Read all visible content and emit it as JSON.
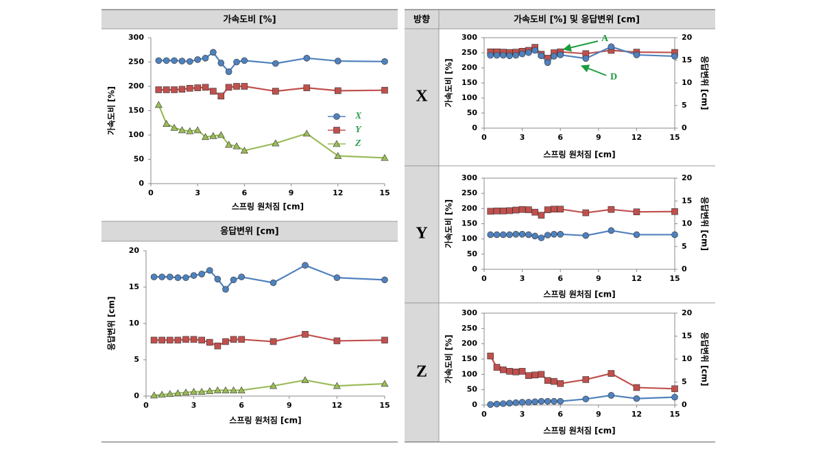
{
  "table": {
    "left_headers": [
      "가속도비 [%]",
      "응답변위 [cm]"
    ],
    "right_header": [
      "방향",
      "가속도비 [%] 및 응답변위 [cm]"
    ],
    "row_labels": [
      "X",
      "Y",
      "Z"
    ]
  },
  "chart_data": [
    {
      "type": "line",
      "xlabel": "스프링 원처짐 [cm]",
      "ylabel": "가속도비 [%]",
      "x": [
        0.5,
        1,
        1.5,
        2,
        2.5,
        3,
        3.5,
        4,
        4.5,
        5,
        5.5,
        6,
        8,
        10,
        12,
        15
      ],
      "xlim": [
        0,
        15
      ],
      "xticks": [
        0,
        3,
        6,
        9,
        12,
        15
      ],
      "ylim": [
        0,
        300
      ],
      "yticks": [
        0,
        50,
        100,
        150,
        200,
        250,
        300
      ],
      "grid": false,
      "legend": "center right",
      "series": [
        {
          "name": "X",
          "color": "#4f81bd",
          "marker": "circle",
          "values": [
            253,
            253,
            253,
            252,
            251,
            255,
            258,
            270,
            248,
            230,
            250,
            253,
            247,
            258,
            252,
            251
          ]
        },
        {
          "name": "Y",
          "color": "#c0504d",
          "marker": "square",
          "values": [
            193,
            193,
            193,
            194,
            196,
            197,
            198,
            190,
            180,
            198,
            200,
            200,
            190,
            197,
            191,
            192
          ]
        },
        {
          "name": "Z",
          "color": "#9bbb59",
          "marker": "triangle",
          "values": [
            162,
            123,
            115,
            110,
            108,
            110,
            96,
            98,
            100,
            80,
            77,
            68,
            83,
            103,
            57,
            53
          ]
        }
      ]
    },
    {
      "type": "line",
      "xlabel": "스프링 원처짐 [cm]",
      "ylabel": "응답변위 [cm]",
      "x": [
        0.5,
        1,
        1.5,
        2,
        2.5,
        3,
        3.5,
        4,
        4.5,
        5,
        5.5,
        6,
        8,
        10,
        12,
        15
      ],
      "xlim": [
        0,
        15
      ],
      "xticks": [
        0,
        3,
        6,
        9,
        12,
        15
      ],
      "ylim": [
        0,
        20
      ],
      "yticks": [
        0,
        5,
        10,
        15,
        20
      ],
      "grid": false,
      "series": [
        {
          "color": "#4f81bd",
          "marker": "circle",
          "values": [
            16.4,
            16.4,
            16.4,
            16.3,
            16.3,
            16.6,
            16.8,
            17.3,
            16.1,
            14.7,
            16.0,
            16.4,
            15.6,
            18.0,
            16.3,
            16.0
          ]
        },
        {
          "color": "#c0504d",
          "marker": "square",
          "values": [
            7.7,
            7.7,
            7.7,
            7.7,
            7.8,
            7.8,
            7.7,
            7.4,
            6.9,
            7.5,
            7.8,
            7.8,
            7.5,
            8.5,
            7.6,
            7.7
          ]
        },
        {
          "color": "#9bbb59",
          "marker": "triangle",
          "values": [
            0.1,
            0.2,
            0.3,
            0.4,
            0.5,
            0.6,
            0.6,
            0.7,
            0.8,
            0.8,
            0.8,
            0.8,
            1.4,
            2.2,
            1.4,
            1.7
          ]
        }
      ]
    },
    {
      "type": "line",
      "xlabel": "스프링 원처짐 [cm]",
      "ylabel": "가속도비 [%]",
      "y2label": "응답변위 [cm]",
      "x": [
        0.5,
        1,
        1.5,
        2,
        2.5,
        3,
        3.5,
        4,
        4.5,
        5,
        5.5,
        6,
        8,
        10,
        12,
        15
      ],
      "xlim": [
        0,
        15
      ],
      "xticks": [
        0,
        3,
        6,
        9,
        12,
        15
      ],
      "ylim": [
        0,
        300
      ],
      "yticks": [
        0,
        50,
        100,
        150,
        200,
        250,
        300
      ],
      "y2lim": [
        0,
        20
      ],
      "y2ticks": [
        0,
        5,
        10,
        15,
        20
      ],
      "grid": false,
      "annotations": [
        {
          "text": "A"
        },
        {
          "text": "D"
        }
      ],
      "series": [
        {
          "color": "#c0504d",
          "marker": "square",
          "values": [
            253,
            253,
            252,
            251,
            252,
            255,
            258,
            268,
            245,
            232,
            250,
            253,
            247,
            258,
            252,
            251
          ]
        },
        {
          "color": "#4f81bd",
          "marker": "circle",
          "axis": "y2",
          "values": [
            16.1,
            16.1,
            16.1,
            16.0,
            16.1,
            16.4,
            16.7,
            17.2,
            16.0,
            14.5,
            15.9,
            16.2,
            15.4,
            18.0,
            16.2,
            15.9
          ]
        }
      ]
    },
    {
      "type": "line",
      "xlabel": "스프링 원처짐 [cm]",
      "ylabel": "가속도비 [%]",
      "y2label": "응답변위 [cm]",
      "x": [
        0.5,
        1,
        1.5,
        2,
        2.5,
        3,
        3.5,
        4,
        4.5,
        5,
        5.5,
        6,
        8,
        10,
        12,
        15
      ],
      "xlim": [
        0,
        15
      ],
      "xticks": [
        0,
        3,
        6,
        9,
        12,
        15
      ],
      "ylim": [
        0,
        300
      ],
      "yticks": [
        0,
        50,
        100,
        150,
        200,
        250,
        300
      ],
      "y2lim": [
        0,
        20
      ],
      "y2ticks": [
        0,
        5,
        10,
        15,
        20
      ],
      "grid": false,
      "series": [
        {
          "color": "#c0504d",
          "marker": "square",
          "values": [
            191,
            192,
            192,
            193,
            195,
            197,
            196,
            188,
            178,
            196,
            198,
            198,
            186,
            197,
            189,
            190
          ]
        },
        {
          "color": "#4f81bd",
          "marker": "circle",
          "axis": "y2",
          "values": [
            7.6,
            7.6,
            7.6,
            7.6,
            7.7,
            7.7,
            7.6,
            7.3,
            6.9,
            7.5,
            7.7,
            7.7,
            7.4,
            8.5,
            7.6,
            7.6
          ]
        }
      ]
    },
    {
      "type": "line",
      "xlabel": "스프링 원처짐 [cm]",
      "ylabel": "가속도비 [%]",
      "y2label": "응답변위 [cm]",
      "x": [
        0.5,
        1,
        1.5,
        2,
        2.5,
        3,
        3.5,
        4,
        4.5,
        5,
        5.5,
        6,
        8,
        10,
        12,
        15
      ],
      "xlim": [
        0,
        15
      ],
      "xticks": [
        0,
        3,
        6,
        9,
        12,
        15
      ],
      "ylim": [
        0,
        300
      ],
      "yticks": [
        0,
        50,
        100,
        150,
        200,
        250,
        300
      ],
      "y2lim": [
        0,
        20
      ],
      "y2ticks": [
        0,
        5,
        10,
        15,
        20
      ],
      "grid": false,
      "series": [
        {
          "color": "#c0504d",
          "marker": "square",
          "values": [
            160,
            123,
            115,
            110,
            108,
            110,
            96,
            98,
            100,
            80,
            77,
            70,
            83,
            103,
            57,
            53
          ]
        },
        {
          "color": "#4f81bd",
          "marker": "circle",
          "axis": "y2",
          "values": [
            0.1,
            0.2,
            0.3,
            0.4,
            0.5,
            0.6,
            0.6,
            0.7,
            0.8,
            0.8,
            0.8,
            0.8,
            1.3,
            2.1,
            1.4,
            1.7
          ]
        }
      ]
    }
  ]
}
